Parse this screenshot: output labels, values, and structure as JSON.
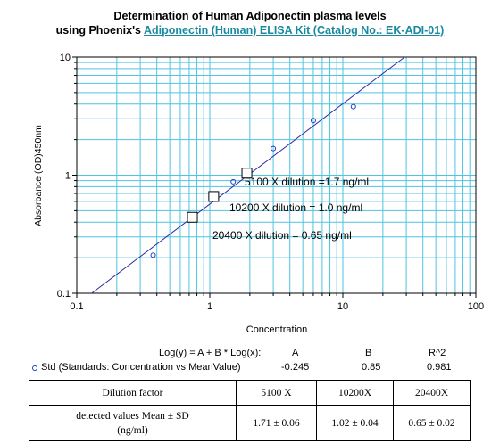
{
  "title": {
    "line1": "Determination of Human Adiponectin plasma levels",
    "line2_prefix": "using Phoenix's ",
    "line2_link": "Adiponectin (Human) ELISA Kit (Catalog No.: EK-ADI-01)"
  },
  "chart_data": {
    "type": "scatter",
    "xlabel": "Concentration",
    "ylabel": "Absorbance (OD)450nm",
    "xscale": "log",
    "yscale": "log",
    "xlim": [
      0.1,
      100
    ],
    "ylim": [
      0.1,
      10
    ],
    "grid": true,
    "x_ticks": [
      "0.1",
      "1",
      "10",
      "100"
    ],
    "y_ticks": [
      "0.1",
      "1",
      "10"
    ],
    "series": [
      {
        "name": "Std (Standards: Concentration vs MeanValue)",
        "marker": "circle",
        "color": "#1f3fbf",
        "x": [
          0.375,
          1.5,
          3.0,
          6.0,
          12.0
        ],
        "y": [
          0.21,
          0.88,
          1.68,
          2.9,
          3.8
        ]
      },
      {
        "name": "",
        "marker": "square",
        "color": "#000000",
        "x": [
          0.74,
          1.07,
          1.9
        ],
        "y": [
          0.44,
          0.66,
          1.04
        ]
      }
    ],
    "fit_line": {
      "A": -0.245,
      "B": 0.85,
      "color": "#2a2aa8"
    },
    "annotations": [
      {
        "text": "5100 X dilution =1.7 ng/ml"
      },
      {
        "text": "10200 X dilution = 1.0 ng/ml"
      },
      {
        "text": "20400 X dilution = 0.65 ng/ml"
      }
    ]
  },
  "fit": {
    "equation": "Log(y) = A + B * Log(x):",
    "headers": [
      "A",
      "B",
      "R^2"
    ],
    "series_label": "Std (Standards: Concentration vs MeanValue)",
    "values": [
      "-0.245",
      "0.85",
      "0.981"
    ]
  },
  "results_table": {
    "header": [
      "Dilution factor",
      "5100 X",
      "10200X",
      "20400X"
    ],
    "row_label_line1": "detected values Mean ± SD",
    "row_label_line2": "(ng/ml)",
    "row_values": [
      "1.71 ± 0.06",
      "1.02 ± 0.04",
      "0.65 ± 0.02"
    ]
  },
  "colors": {
    "grid": "#4fc3e0",
    "link": "#1a8aa0",
    "marker_circle": "#1f3fbf",
    "fit_line": "#2a2aa8"
  }
}
